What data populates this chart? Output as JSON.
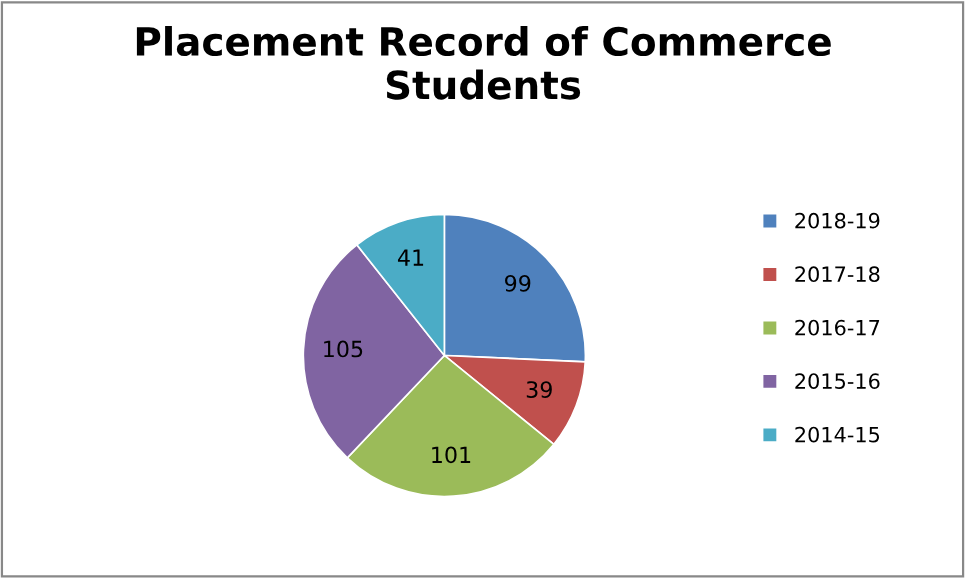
{
  "chart_data": {
    "type": "pie",
    "title": "Placement Record of Commerce Students",
    "categories": [
      "2018-19",
      "2017-18",
      "2016-17",
      "2015-16",
      "2014-15"
    ],
    "values": [
      99,
      39,
      101,
      105,
      41
    ],
    "colors": [
      "#4f81bd",
      "#c0504d",
      "#9bbb59",
      "#8064a2",
      "#4bacc6"
    ],
    "data_labels": true,
    "legend": "right"
  }
}
